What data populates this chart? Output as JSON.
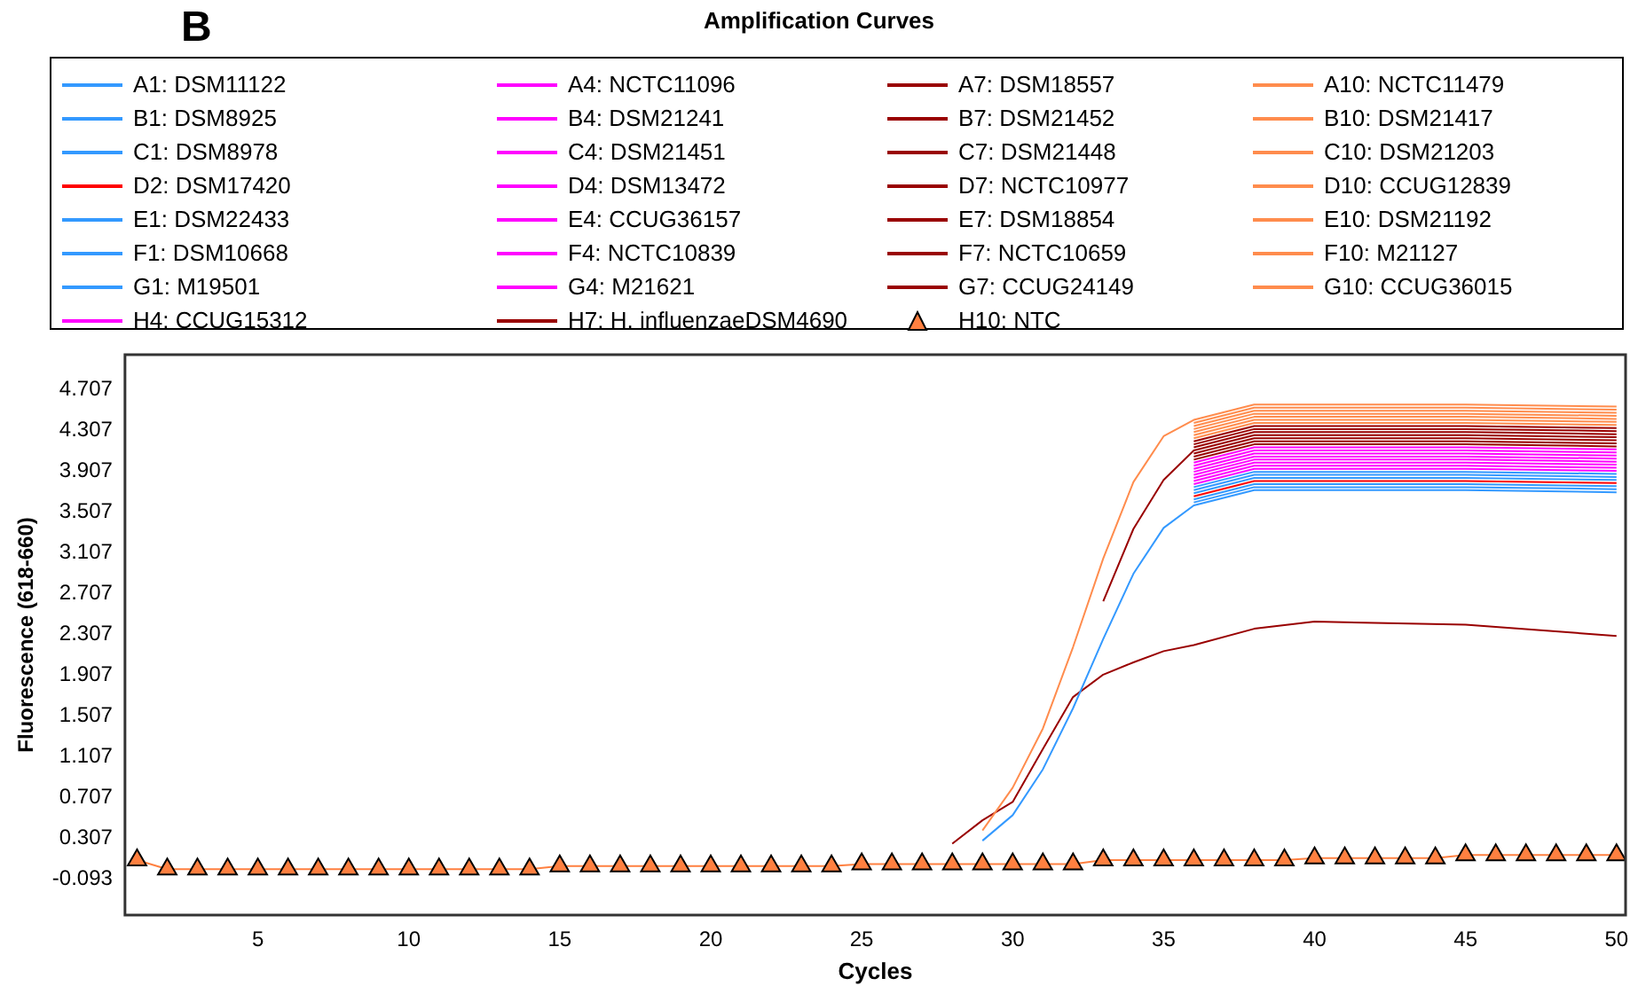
{
  "chart_data": {
    "type": "line",
    "title": "Amplification Curves",
    "xlabel": "Cycles",
    "ylabel": "Fluorescence (618-660)",
    "annotations": [
      "B"
    ],
    "x": [
      28,
      29,
      30,
      31,
      32,
      33,
      34,
      35,
      36,
      38,
      40,
      45,
      50
    ],
    "xlim": [
      0.6,
      50.3
    ],
    "xticks": [
      5,
      10,
      15,
      20,
      25,
      30,
      35,
      40,
      45,
      50
    ],
    "ylim": [
      -0.45,
      5.05
    ],
    "yticks": [
      -0.093,
      0.307,
      0.707,
      1.107,
      1.507,
      1.907,
      2.307,
      2.707,
      3.107,
      3.507,
      3.907,
      4.307,
      4.707
    ],
    "grid": false,
    "legend": "top",
    "marker": "none",
    "line_style": "solid",
    "series": [
      {
        "name": "A1: DSM11122",
        "color": "#3399ff",
        "values": [
          null,
          0.28,
          0.53,
          0.98,
          1.58,
          2.26,
          2.9,
          3.35,
          3.57,
          3.72,
          3.72,
          3.72,
          3.7
        ]
      },
      {
        "name": "A4: NCTC11096",
        "color": "#ff00ff",
        "values": [
          null,
          null,
          null,
          null,
          null,
          null,
          null,
          null,
          3.9,
          4.05,
          4.05,
          4.05,
          4.03
        ]
      },
      {
        "name": "A7: DSM18557",
        "color": "#990000",
        "values": [
          null,
          null,
          null,
          null,
          null,
          null,
          null,
          null,
          4.17,
          4.32,
          4.32,
          4.32,
          4.3
        ]
      },
      {
        "name": "A10: NCTC11479",
        "color": "#ff8c4d",
        "values": [
          null,
          0.38,
          0.8,
          1.38,
          2.18,
          3.05,
          3.8,
          4.25,
          4.41,
          4.56,
          4.56,
          4.56,
          4.54
        ]
      },
      {
        "name": "B1: DSM8925",
        "color": "#3399ff",
        "values": [
          null,
          null,
          null,
          null,
          null,
          null,
          null,
          null,
          3.63,
          3.78,
          3.78,
          3.78,
          3.76
        ]
      },
      {
        "name": "B4: DSM21241",
        "color": "#ff00ff",
        "values": [
          null,
          null,
          null,
          null,
          null,
          null,
          null,
          null,
          3.96,
          4.11,
          4.11,
          4.11,
          4.09
        ]
      },
      {
        "name": "B7: DSM21452",
        "color": "#990000",
        "values": [
          null,
          null,
          null,
          null,
          null,
          null,
          null,
          null,
          4.08,
          4.23,
          4.23,
          4.23,
          4.21
        ]
      },
      {
        "name": "B10: DSM21417",
        "color": "#ff8c4d",
        "values": [
          null,
          null,
          null,
          null,
          null,
          null,
          null,
          null,
          4.35,
          4.5,
          4.5,
          4.5,
          4.48
        ]
      },
      {
        "name": "C1: DSM8978",
        "color": "#3399ff",
        "values": [
          null,
          null,
          null,
          null,
          null,
          null,
          null,
          null,
          3.69,
          3.84,
          3.84,
          3.84,
          3.82
        ]
      },
      {
        "name": "C4: DSM21451",
        "color": "#ff00ff",
        "values": [
          null,
          null,
          null,
          null,
          null,
          null,
          null,
          null,
          3.81,
          3.96,
          3.96,
          3.96,
          3.94
        ]
      },
      {
        "name": "C7: DSM21448",
        "color": "#990000",
        "values": [
          null,
          null,
          null,
          null,
          null,
          null,
          null,
          null,
          4.2,
          4.35,
          4.35,
          4.35,
          4.33
        ]
      },
      {
        "name": "C10: DSM21203",
        "color": "#ff8c4d",
        "values": [
          null,
          null,
          null,
          null,
          null,
          null,
          null,
          null,
          4.32,
          4.47,
          4.47,
          4.47,
          4.45
        ]
      },
      {
        "name": "D2: DSM17420",
        "color": "#ff0000",
        "values": [
          null,
          null,
          null,
          null,
          null,
          null,
          null,
          null,
          3.66,
          3.81,
          3.81,
          3.81,
          3.79
        ]
      },
      {
        "name": "D4: DSM13472",
        "color": "#ff00ff",
        "values": [
          null,
          null,
          null,
          null,
          null,
          null,
          null,
          null,
          3.87,
          4.02,
          4.02,
          4.02,
          4.0
        ]
      },
      {
        "name": "D7: NCTC10977",
        "color": "#990000",
        "values": [
          null,
          null,
          null,
          null,
          null,
          2.63,
          3.34,
          3.82,
          4.11,
          4.26,
          4.26,
          4.26,
          4.24
        ]
      },
      {
        "name": "D10: CCUG12839",
        "color": "#ff8c4d",
        "values": [
          null,
          null,
          null,
          null,
          null,
          null,
          null,
          null,
          4.29,
          4.44,
          4.44,
          4.44,
          4.42
        ]
      },
      {
        "name": "E1: DSM22433",
        "color": "#3399ff",
        "values": [
          null,
          null,
          null,
          null,
          null,
          null,
          null,
          null,
          3.72,
          3.87,
          3.87,
          3.87,
          3.85
        ]
      },
      {
        "name": "E4: CCUG36157",
        "color": "#ff00ff",
        "values": [
          null,
          null,
          null,
          null,
          null,
          null,
          null,
          null,
          3.99,
          4.14,
          4.14,
          4.14,
          4.12
        ]
      },
      {
        "name": "E7: DSM18854",
        "color": "#990000",
        "values": [
          null,
          null,
          null,
          null,
          null,
          null,
          null,
          null,
          4.14,
          4.29,
          4.29,
          4.29,
          4.27
        ]
      },
      {
        "name": "E10: DSM21192",
        "color": "#ff8c4d",
        "values": [
          null,
          null,
          null,
          null,
          null,
          null,
          null,
          null,
          4.26,
          4.41,
          4.41,
          4.41,
          4.39
        ]
      },
      {
        "name": "F1: DSM10668",
        "color": "#3399ff",
        "values": [
          null,
          null,
          null,
          null,
          null,
          null,
          null,
          null,
          3.6,
          3.75,
          3.75,
          3.75,
          3.73
        ]
      },
      {
        "name": "F4: NCTC10839",
        "color": "#ff00ff",
        "values": [
          null,
          null,
          null,
          null,
          null,
          null,
          null,
          null,
          3.78,
          3.93,
          3.93,
          3.93,
          3.91
        ]
      },
      {
        "name": "F7: NCTC10659",
        "color": "#990000",
        "values": [
          null,
          null,
          null,
          null,
          null,
          null,
          null,
          null,
          4.05,
          4.2,
          4.2,
          4.2,
          4.18
        ]
      },
      {
        "name": "F10: M21127",
        "color": "#ff8c4d",
        "values": [
          null,
          null,
          null,
          null,
          null,
          null,
          null,
          null,
          4.38,
          4.53,
          4.53,
          4.53,
          4.51
        ]
      },
      {
        "name": "G1: M19501",
        "color": "#3399ff",
        "values": [
          null,
          null,
          null,
          null,
          null,
          null,
          null,
          null,
          3.75,
          3.9,
          3.9,
          3.9,
          3.88
        ]
      },
      {
        "name": "G4: M21621",
        "color": "#ff00ff",
        "values": [
          null,
          null,
          null,
          null,
          null,
          null,
          null,
          null,
          3.93,
          4.08,
          4.08,
          4.08,
          4.06
        ]
      },
      {
        "name": "G7: CCUG24149",
        "color": "#990000",
        "values": [
          null,
          null,
          null,
          null,
          null,
          null,
          null,
          null,
          4.02,
          4.17,
          4.17,
          4.17,
          4.15
        ]
      },
      {
        "name": "G10: CCUG36015",
        "color": "#ff8c4d",
        "values": [
          null,
          null,
          null,
          null,
          null,
          null,
          null,
          null,
          4.23,
          4.38,
          4.38,
          4.38,
          4.36
        ]
      },
      {
        "name": "H4: CCUG15312",
        "color": "#ff00ff",
        "values": [
          null,
          null,
          null,
          null,
          null,
          null,
          null,
          null,
          3.84,
          3.99,
          3.99,
          3.99,
          3.97
        ]
      },
      {
        "name": "H7: H. influenzaeDSM4690",
        "color": "#990000",
        "values": [
          0.25,
          0.48,
          0.66,
          1.18,
          1.69,
          1.91,
          2.03,
          2.14,
          2.2,
          2.36,
          2.43,
          2.4,
          2.29
        ]
      },
      {
        "name": "H10: NTC",
        "color": "#ff8040",
        "marker": "triangle",
        "x": [
          1,
          2,
          3,
          4,
          5,
          6,
          7,
          8,
          9,
          10,
          11,
          12,
          13,
          14,
          15,
          16,
          17,
          18,
          19,
          20,
          21,
          22,
          23,
          24,
          25,
          26,
          27,
          28,
          29,
          30,
          31,
          32,
          33,
          34,
          35,
          36,
          37,
          38,
          39,
          40,
          41,
          42,
          43,
          44,
          45,
          46,
          47,
          48,
          49,
          50
        ],
        "values": [
          0.09,
          0.0,
          0.0,
          0.0,
          0.0,
          0.0,
          0.0,
          0.0,
          0.0,
          0.0,
          0.0,
          0.0,
          0.0,
          0.0,
          0.03,
          0.03,
          0.03,
          0.03,
          0.03,
          0.03,
          0.03,
          0.03,
          0.03,
          0.03,
          0.05,
          0.05,
          0.05,
          0.05,
          0.05,
          0.05,
          0.05,
          0.05,
          0.09,
          0.09,
          0.09,
          0.09,
          0.09,
          0.09,
          0.09,
          0.11,
          0.11,
          0.11,
          0.11,
          0.11,
          0.14,
          0.14,
          0.14,
          0.14,
          0.14,
          0.14
        ]
      }
    ]
  }
}
